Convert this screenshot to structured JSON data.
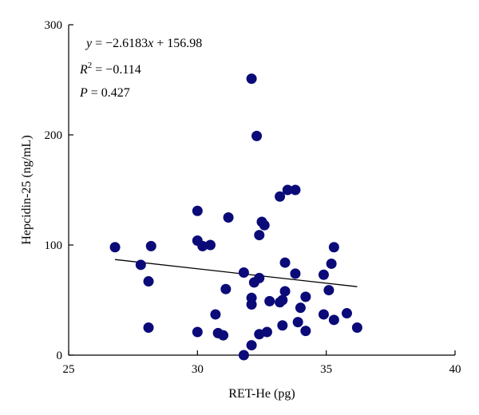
{
  "chart_data": {
    "type": "scatter",
    "title": "",
    "xlabel": "RET-He (pg)",
    "ylabel": "Hepcidin-25 (ng/mL)",
    "xlim": [
      25,
      40
    ],
    "ylim": [
      0,
      300
    ],
    "xticks": [
      25,
      30,
      35,
      40
    ],
    "yticks": [
      0,
      100,
      200,
      300
    ],
    "grid": false,
    "marker_color": "#0a0a78",
    "annotations": {
      "equation": {
        "var_y": "y",
        "eq": " = −2.6183",
        "var_x": "x",
        "rest": " + 156.98"
      },
      "r2": {
        "var": "R",
        "sup": "2",
        "rest": " = −0.114"
      },
      "p": {
        "var": "P",
        "rest": " = 0.427"
      }
    },
    "trendline": {
      "slope": -2.6183,
      "intercept": 156.98,
      "x_start": 26.8,
      "x_end": 36.2
    },
    "points": [
      {
        "x": 26.8,
        "y": 98
      },
      {
        "x": 27.8,
        "y": 82
      },
      {
        "x": 28.1,
        "y": 67
      },
      {
        "x": 28.1,
        "y": 25
      },
      {
        "x": 28.2,
        "y": 99
      },
      {
        "x": 30.0,
        "y": 131
      },
      {
        "x": 30.0,
        "y": 104
      },
      {
        "x": 30.0,
        "y": 21
      },
      {
        "x": 30.2,
        "y": 99
      },
      {
        "x": 30.5,
        "y": 100
      },
      {
        "x": 30.7,
        "y": 37
      },
      {
        "x": 30.8,
        "y": 20
      },
      {
        "x": 31.0,
        "y": 18
      },
      {
        "x": 31.1,
        "y": 60
      },
      {
        "x": 31.2,
        "y": 125
      },
      {
        "x": 31.8,
        "y": 75
      },
      {
        "x": 31.8,
        "y": 0
      },
      {
        "x": 32.1,
        "y": 251
      },
      {
        "x": 32.1,
        "y": 52
      },
      {
        "x": 32.1,
        "y": 46
      },
      {
        "x": 32.1,
        "y": 9
      },
      {
        "x": 32.2,
        "y": 66
      },
      {
        "x": 32.3,
        "y": 199
      },
      {
        "x": 32.4,
        "y": 109
      },
      {
        "x": 32.4,
        "y": 70
      },
      {
        "x": 32.4,
        "y": 19
      },
      {
        "x": 32.5,
        "y": 121
      },
      {
        "x": 32.6,
        "y": 118
      },
      {
        "x": 32.7,
        "y": 21
      },
      {
        "x": 32.8,
        "y": 49
      },
      {
        "x": 33.2,
        "y": 144
      },
      {
        "x": 33.2,
        "y": 48
      },
      {
        "x": 33.3,
        "y": 50
      },
      {
        "x": 33.3,
        "y": 27
      },
      {
        "x": 33.4,
        "y": 84
      },
      {
        "x": 33.4,
        "y": 58
      },
      {
        "x": 33.5,
        "y": 150
      },
      {
        "x": 33.8,
        "y": 150
      },
      {
        "x": 33.8,
        "y": 74
      },
      {
        "x": 33.9,
        "y": 30
      },
      {
        "x": 34.0,
        "y": 43
      },
      {
        "x": 34.2,
        "y": 53
      },
      {
        "x": 34.2,
        "y": 22
      },
      {
        "x": 34.9,
        "y": 73
      },
      {
        "x": 34.9,
        "y": 37
      },
      {
        "x": 35.1,
        "y": 59
      },
      {
        "x": 35.2,
        "y": 83
      },
      {
        "x": 35.3,
        "y": 98
      },
      {
        "x": 35.3,
        "y": 32
      },
      {
        "x": 35.8,
        "y": 38
      },
      {
        "x": 36.2,
        "y": 25
      }
    ]
  }
}
